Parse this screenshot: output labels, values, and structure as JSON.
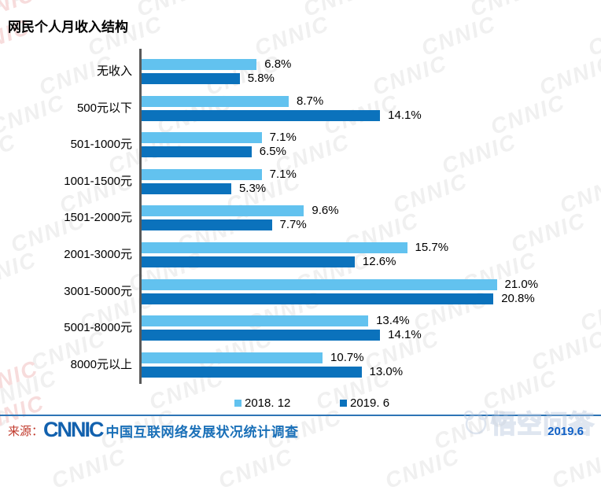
{
  "title": "网民个人月收入结构",
  "chart_data": {
    "type": "bar",
    "orientation": "horizontal",
    "title": "网民个人月收入结构",
    "categories": [
      "无收入",
      "500元以下",
      "501-1000元",
      "1001-1500元",
      "1501-2000元",
      "2001-3000元",
      "3001-5000元",
      "5001-8000元",
      "8000元以上"
    ],
    "series": [
      {
        "name": "2018. 12",
        "color": "#62C2EF",
        "values": [
          6.8,
          8.7,
          7.1,
          7.1,
          9.6,
          15.7,
          21.0,
          13.4,
          10.7
        ]
      },
      {
        "name": "2019. 6",
        "color": "#0B72BC",
        "values": [
          5.8,
          14.1,
          6.5,
          5.3,
          7.7,
          12.6,
          20.8,
          14.1,
          13.0
        ]
      }
    ],
    "value_suffix": "%",
    "xlim": [
      0,
      22
    ],
    "grid": false,
    "legend_position": "bottom"
  },
  "footer": {
    "source_label": "来源：",
    "logo_text": "CNNIC",
    "survey_text": "中国互联网络发展状况统计调查",
    "date_text": "2019.6"
  },
  "watermarks": {
    "background_text": "CNNIC",
    "platform_text": "悟空问答"
  },
  "colors": {
    "series_2018_light_blue": "#62C2EF",
    "series_2019_dark_blue": "#0B72BC",
    "axis_gray": "#595959",
    "separator_blue": "#2E75B6",
    "footer_text_blue": "#1A70B8",
    "source_label_red": "#C0392B",
    "footer_date_blue": "#1060C5",
    "background_watermark_gray": "#f0f0f0"
  }
}
